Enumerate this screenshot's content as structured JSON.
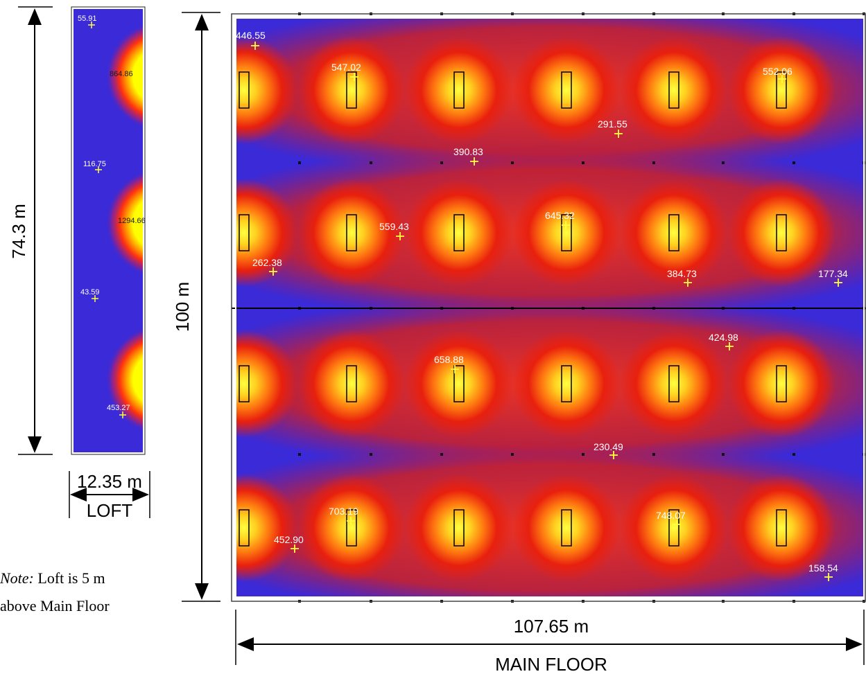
{
  "loft": {
    "height_label": "74.3 m",
    "width_label": "12.35 m",
    "name": "LOFT",
    "points": [
      {
        "label": "55.91"
      },
      {
        "label": "864.86"
      },
      {
        "label": "116.75"
      },
      {
        "label": "1294.66"
      },
      {
        "label": "43.59"
      },
      {
        "label": "453.27"
      }
    ]
  },
  "note": {
    "prefix": "Note:",
    "line1_rest": " Loft is 5 m",
    "line2": "above Main Floor"
  },
  "main": {
    "height_label": "100 m",
    "width_label": "107.65 m",
    "name": "MAIN FLOOR",
    "points": [
      {
        "label": "446.55"
      },
      {
        "label": "547.02"
      },
      {
        "label": "552.06"
      },
      {
        "label": "291.55"
      },
      {
        "label": "390.83"
      },
      {
        "label": "559.43"
      },
      {
        "label": "645.32"
      },
      {
        "label": "262.38"
      },
      {
        "label": "384.73"
      },
      {
        "label": "177.34"
      },
      {
        "label": "424.98"
      },
      {
        "label": "658.88"
      },
      {
        "label": "230.49"
      },
      {
        "label": "703.19"
      },
      {
        "label": "748.07"
      },
      {
        "label": "452.90"
      },
      {
        "label": "158.54"
      }
    ]
  },
  "colors": {
    "background_blue": "#3a2ad8",
    "red": "#e81a10",
    "yellow": "#ffff00",
    "marker": "#ffff40"
  }
}
